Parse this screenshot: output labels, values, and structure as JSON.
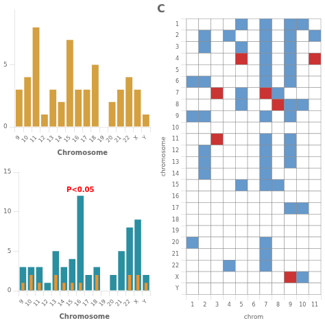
{
  "chart_data": [
    {
      "type": "bar",
      "categories": [
        "9",
        "10",
        "11",
        "12",
        "13",
        "14",
        "15",
        "16",
        "17",
        "18",
        "19",
        "20",
        "21",
        "22",
        "X",
        "Y"
      ],
      "values": [
        3,
        4,
        8,
        1,
        3,
        2,
        7,
        3,
        3,
        5,
        0,
        2,
        3,
        4,
        3,
        1
      ],
      "color": "#d4a040",
      "xlabel": "Chromosome",
      "ylim": [
        0,
        9.44
      ],
      "yticks": [
        0,
        5
      ],
      "grid": false
    },
    {
      "type": "bar",
      "categories": [
        "9",
        "10",
        "11",
        "12",
        "13",
        "14",
        "15",
        "16",
        "17",
        "18",
        "19",
        "20",
        "21",
        "22",
        "X",
        "Y"
      ],
      "series": [
        {
          "color": "#2a8fa0",
          "values": [
            3,
            3,
            3,
            1,
            5,
            3,
            4,
            12,
            2,
            3,
            0,
            2,
            5,
            8,
            9,
            2
          ]
        },
        {
          "color": "#f0922a",
          "values": [
            1,
            2,
            1,
            0,
            2,
            1,
            1,
            1,
            0,
            2,
            0,
            0,
            0,
            2,
            2,
            1
          ]
        }
      ],
      "annotations": [
        {
          "text": "P<0.05",
          "x": "16",
          "color": "red"
        }
      ],
      "xlabel": "Chromosome",
      "ylim": [
        0,
        15
      ],
      "yticks": [
        0,
        5,
        10,
        15
      ],
      "grid": false
    },
    {
      "type": "heatmap",
      "title": "C",
      "xlabel": "chrom",
      "ylabel": "chromosome",
      "x": [
        "1",
        "2",
        "3",
        "4",
        "5",
        "6",
        "7",
        "8",
        "9",
        "10",
        "11"
      ],
      "y": [
        "1",
        "2",
        "3",
        "4",
        "5",
        "6",
        "7",
        "8",
        "9",
        "10",
        "11",
        "12",
        "13",
        "14",
        "15",
        "16",
        "17",
        "18",
        "19",
        "20",
        "21",
        "22",
        "X",
        "Y"
      ],
      "cells": [
        [
          0,
          0,
          0,
          0,
          1,
          0,
          1,
          0,
          1,
          1,
          0
        ],
        [
          0,
          1,
          0,
          1,
          0,
          0,
          1,
          0,
          1,
          0,
          1
        ],
        [
          0,
          1,
          0,
          0,
          1,
          0,
          1,
          0,
          1,
          0,
          0
        ],
        [
          0,
          0,
          0,
          0,
          2,
          0,
          1,
          0,
          1,
          0,
          2
        ],
        [
          0,
          0,
          0,
          0,
          0,
          0,
          1,
          0,
          1,
          0,
          0
        ],
        [
          1,
          1,
          0,
          0,
          0,
          0,
          1,
          0,
          1,
          0,
          0
        ],
        [
          0,
          0,
          2,
          0,
          1,
          0,
          2,
          1,
          0,
          0,
          0
        ],
        [
          0,
          0,
          0,
          0,
          1,
          0,
          0,
          2,
          1,
          1,
          0
        ],
        [
          1,
          1,
          0,
          0,
          0,
          0,
          1,
          0,
          1,
          0,
          0
        ],
        [
          0,
          0,
          0,
          0,
          0,
          0,
          0,
          0,
          0,
          0,
          0
        ],
        [
          0,
          0,
          2,
          0,
          0,
          0,
          1,
          0,
          1,
          0,
          0
        ],
        [
          0,
          1,
          0,
          0,
          0,
          0,
          1,
          0,
          1,
          0,
          0
        ],
        [
          0,
          1,
          0,
          0,
          0,
          0,
          1,
          0,
          1,
          0,
          0
        ],
        [
          0,
          1,
          0,
          0,
          0,
          0,
          1,
          0,
          0,
          0,
          0
        ],
        [
          0,
          0,
          0,
          0,
          1,
          0,
          1,
          1,
          0,
          0,
          0
        ],
        [
          0,
          0,
          0,
          0,
          0,
          0,
          0,
          0,
          0,
          0,
          0
        ],
        [
          0,
          0,
          0,
          0,
          0,
          0,
          0,
          0,
          1,
          1,
          0
        ],
        [
          0,
          0,
          0,
          0,
          0,
          0,
          0,
          0,
          0,
          0,
          0
        ],
        [
          0,
          0,
          0,
          0,
          0,
          0,
          0,
          0,
          0,
          0,
          0
        ],
        [
          1,
          0,
          0,
          0,
          0,
          0,
          1,
          0,
          0,
          0,
          0
        ],
        [
          0,
          0,
          0,
          0,
          0,
          0,
          1,
          0,
          0,
          0,
          0
        ],
        [
          0,
          0,
          0,
          1,
          0,
          0,
          1,
          0,
          0,
          0,
          0
        ],
        [
          0,
          0,
          0,
          0,
          0,
          0,
          0,
          0,
          2,
          1,
          0
        ],
        [
          0,
          0,
          0,
          0,
          0,
          0,
          0,
          0,
          0,
          0,
          0
        ]
      ],
      "colors": [
        "#ffffff",
        "#6699cc",
        "#cc3333"
      ],
      "grid": false
    }
  ]
}
